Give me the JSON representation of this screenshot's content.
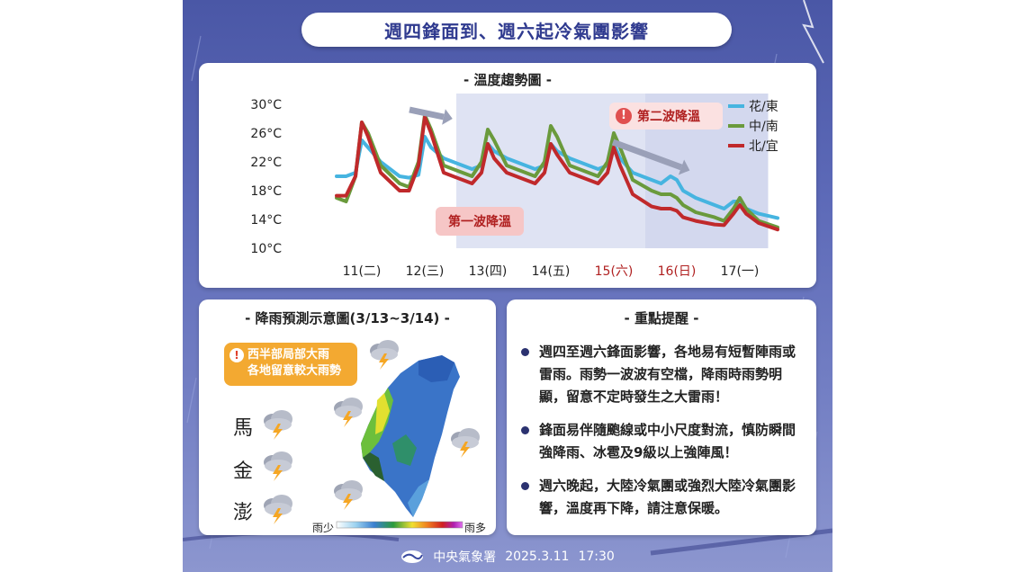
{
  "poster": {
    "title": "週四鋒面到、週六起冷氣團影響"
  },
  "temp_chart": {
    "heading": "- 溫度趨勢圖 -",
    "annotation_second": "第二波降溫",
    "annotation_first": "第一波降溫",
    "colors": {
      "east": "#46b4e0",
      "south": "#6a9a3c",
      "north": "#c0292b",
      "shade": "#dfe3f3",
      "warn": "#e05050"
    }
  },
  "chart_data": {
    "type": "line",
    "title": "- 溫度趨勢圖 -",
    "xlabel": "",
    "ylabel": "",
    "ylim": [
      10,
      30
    ],
    "yticks": [
      "30°C",
      "26°C",
      "22°C",
      "18°C",
      "14°C",
      "10°C"
    ],
    "ytick_values": [
      30,
      26,
      22,
      18,
      14,
      10
    ],
    "categories": [
      "11(二)",
      "12(三)",
      "13(四)",
      "14(五)",
      "15(六)",
      "16(日)",
      "17(一)"
    ],
    "category_colors": [
      "#222222",
      "#222222",
      "#222222",
      "#222222",
      "#b02020",
      "#b02020",
      "#222222"
    ],
    "x": [
      10.6,
      10.75,
      10.9,
      11.0,
      11.1,
      11.3,
      11.6,
      11.75,
      11.9,
      12.0,
      12.1,
      12.3,
      12.6,
      12.75,
      12.9,
      13.0,
      13.1,
      13.3,
      13.6,
      13.75,
      13.9,
      14.0,
      14.1,
      14.3,
      14.6,
      14.75,
      14.9,
      15.0,
      15.1,
      15.3,
      15.6,
      15.75,
      15.9,
      16.0,
      16.1,
      16.3,
      16.6,
      16.75,
      16.9,
      17.0,
      17.1,
      17.3,
      17.6
    ],
    "series": [
      {
        "name": "花/東",
        "values": [
          20,
          20,
          20.5,
          25,
          24,
          22,
          20,
          19.8,
          20.2,
          25.5,
          24,
          22.5,
          21.5,
          21,
          21.5,
          24.5,
          23.5,
          22.5,
          21.5,
          21,
          21.5,
          24.5,
          23.5,
          22.5,
          21.5,
          21,
          21.5,
          24.5,
          22.5,
          20.5,
          19.5,
          19,
          20,
          19.5,
          18,
          17,
          16,
          15.5,
          16.5,
          16.5,
          15.5,
          14.8,
          14.2
        ]
      },
      {
        "name": "中/南",
        "values": [
          17,
          16.5,
          20,
          27.5,
          26,
          21.5,
          19,
          18.5,
          22,
          28.5,
          26.5,
          21.5,
          20.5,
          20,
          22,
          26.5,
          25,
          21.5,
          20.5,
          20,
          22,
          27,
          25.5,
          21.5,
          20.5,
          20,
          22,
          26,
          24,
          19.5,
          18,
          17.5,
          17.5,
          17,
          16,
          15,
          14.3,
          13.8,
          15.5,
          17,
          15.5,
          13.8,
          12.9
        ]
      },
      {
        "name": "北/宜",
        "values": [
          17.3,
          17.3,
          20,
          27.5,
          25.5,
          20.5,
          18,
          18,
          21.5,
          28.2,
          26,
          20.5,
          19.5,
          19,
          20.5,
          24.5,
          22.5,
          20.5,
          19.5,
          19,
          20.5,
          24.5,
          23,
          20.5,
          19.5,
          19,
          20.5,
          24,
          21.5,
          17.5,
          15.8,
          15.5,
          15.5,
          15.2,
          14.3,
          13.8,
          13.3,
          13.2,
          14.8,
          16,
          14.8,
          13.5,
          12.6
        ]
      }
    ],
    "legend": "top-right",
    "grid": false
  },
  "rain_card": {
    "heading": "- 降雨預測示意圖(3/13~3/14) -",
    "warn_line1": "西半部局部大雨",
    "warn_line2": "各地留意較大雨勢",
    "islands": [
      "馬",
      "金",
      "澎"
    ],
    "scale_low": "雨少",
    "scale_high": "雨多"
  },
  "notes_card": {
    "heading": "- 重點提醒 -",
    "items": [
      "週四至週六鋒面影響，各地易有短暫陣雨或雷雨。雨勢一波波有空檔，降雨時雨勢明顯，留意不定時發生之大雷雨！",
      "鋒面易伴隨颮線或中小尺度對流，慎防瞬間強降雨、冰雹及9級以上強陣風！",
      "週六晚起，大陸冷氣團或強烈大陸冷氣團影響，溫度再下降，請注意保暖。"
    ]
  },
  "footer": {
    "agency": "中央氣象署",
    "date": "2025.3.11",
    "time": "17:30"
  }
}
